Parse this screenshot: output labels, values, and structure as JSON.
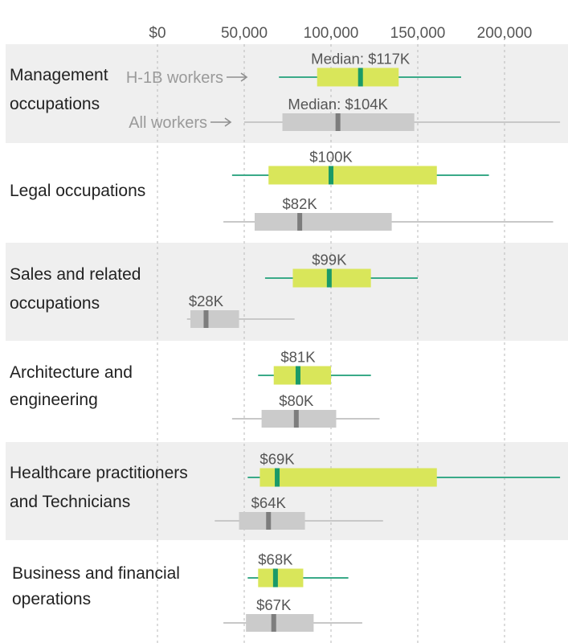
{
  "chart_data": {
    "type": "box",
    "x_axis": {
      "min": 0,
      "max": 230000,
      "ticks": [
        0,
        50000,
        100000,
        150000,
        200000
      ],
      "tick_labels": [
        "$0",
        "50,000",
        "100,000",
        "150,000",
        "200,000"
      ],
      "grid": true
    },
    "legend_labels": [
      "H-1B workers",
      "All workers"
    ],
    "series_colors": {
      "h1b": {
        "box": "#d9e65a",
        "median": "#1a9a68",
        "whisker": "#3aaa88"
      },
      "all": {
        "box": "#cbcbcb",
        "median": "#7d7d7d",
        "whisker": "#c8c8c8"
      }
    },
    "band_color": "#efefef",
    "categories": [
      {
        "label_lines": [
          "Management",
          "occupations"
        ],
        "shaded": true,
        "h1b": {
          "whisker_low": 70000,
          "q1": 92000,
          "median": 117000,
          "q3": 139000,
          "whisker_high": 175000,
          "label": "Median: $117K"
        },
        "all": {
          "whisker_low": 50000,
          "q1": 72000,
          "median": 104000,
          "q3": 148000,
          "whisker_high": 232000,
          "label": "Median: $104K"
        }
      },
      {
        "label_lines": [
          "Legal occupations"
        ],
        "shaded": false,
        "h1b": {
          "whisker_low": 43000,
          "q1": 64000,
          "median": 100000,
          "q3": 161000,
          "whisker_high": 191000,
          "label": "$100K"
        },
        "all": {
          "whisker_low": 38000,
          "q1": 56000,
          "median": 82000,
          "q3": 135000,
          "whisker_high": 228000,
          "label": "$82K"
        }
      },
      {
        "label_lines": [
          "Sales and related",
          "occupations"
        ],
        "shaded": true,
        "h1b": {
          "whisker_low": 62000,
          "q1": 78000,
          "median": 99000,
          "q3": 123000,
          "whisker_high": 150000,
          "label": "$99K"
        },
        "all": {
          "whisker_low": 17000,
          "q1": 19000,
          "median": 28000,
          "q3": 47000,
          "whisker_high": 79000,
          "label": "$28K"
        }
      },
      {
        "label_lines": [
          "Architecture and",
          "engineering"
        ],
        "shaded": false,
        "h1b": {
          "whisker_low": 58000,
          "q1": 67000,
          "median": 81000,
          "q3": 100000,
          "whisker_high": 123000,
          "label": "$81K"
        },
        "all": {
          "whisker_low": 43000,
          "q1": 60000,
          "median": 80000,
          "q3": 103000,
          "whisker_high": 128000,
          "label": "$80K"
        }
      },
      {
        "label_lines": [
          "Healthcare practitioners",
          "and Technicians"
        ],
        "shaded": true,
        "h1b": {
          "whisker_low": 52000,
          "q1": 59000,
          "median": 69000,
          "q3": 161000,
          "whisker_high": 232000,
          "label": "$69K"
        },
        "all": {
          "whisker_low": 33000,
          "q1": 47000,
          "median": 64000,
          "q3": 85000,
          "whisker_high": 130000,
          "label": "$64K"
        }
      },
      {
        "label_lines": [
          "Business and financial",
          "operations"
        ],
        "shaded": false,
        "h1b": {
          "whisker_low": 52000,
          "q1": 58000,
          "median": 68000,
          "q3": 84000,
          "whisker_high": 110000,
          "label": "$68K"
        },
        "all": {
          "whisker_low": 38000,
          "q1": 51000,
          "median": 67000,
          "q3": 90000,
          "whisker_high": 118000,
          "label": "$67K"
        }
      }
    ]
  }
}
